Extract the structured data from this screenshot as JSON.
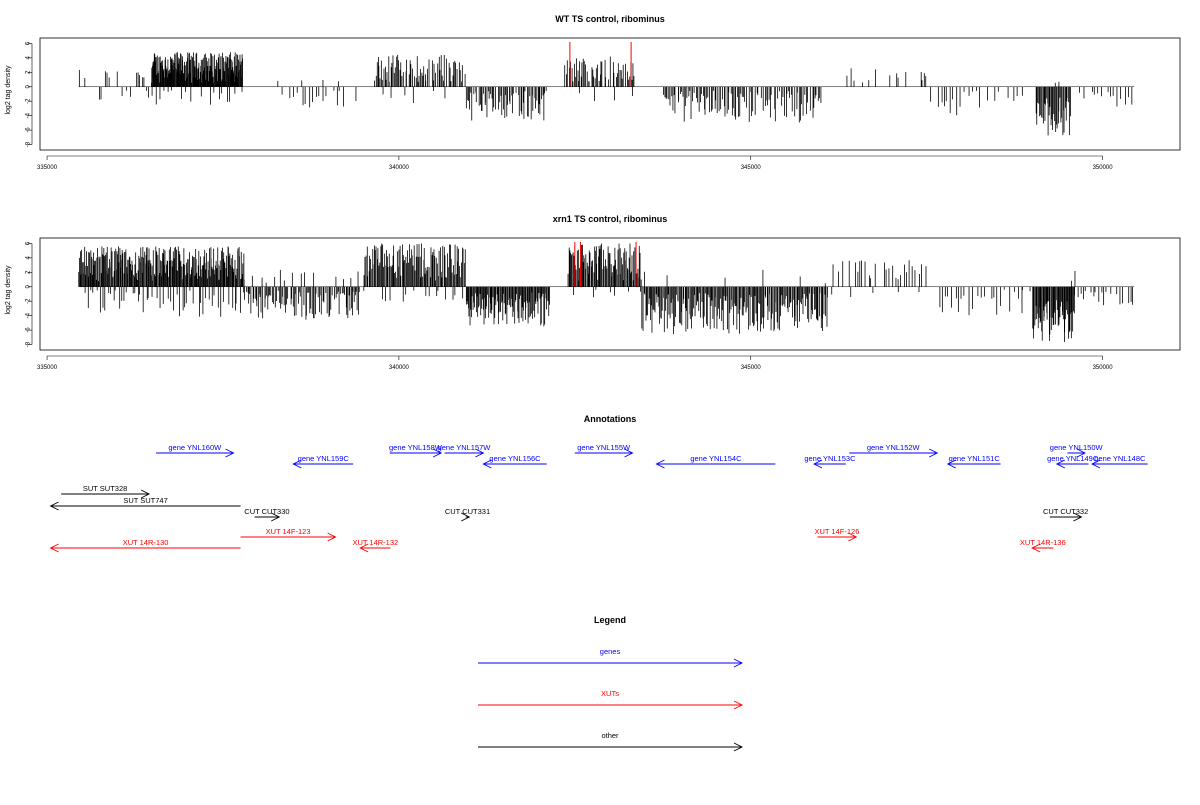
{
  "colors": {
    "gene": "#0000ff",
    "xut": "#ff0000",
    "other": "#000000",
    "marker": "#ff0000",
    "bar": "#000000",
    "baseline": "#000000"
  },
  "chart_data": [
    {
      "type": "bar",
      "title": "WT TS control, ribominus",
      "ylabel": "log2 tag density",
      "xlabel": "",
      "xlim": [
        334900,
        351100
      ],
      "ylim": [
        -8.2,
        6.2
      ],
      "xticks": [
        335000,
        340000,
        345000,
        350000
      ],
      "yticks": [
        -8,
        -6,
        -4,
        -2,
        0,
        2,
        4,
        6
      ],
      "markers_x": [
        342430,
        343300
      ],
      "regions": [
        {
          "start": 335450,
          "end": 335550,
          "n": 3,
          "min": 0.6,
          "max": 3.1,
          "density": 0.7
        },
        {
          "start": 335550,
          "end": 335800,
          "n": 6,
          "min": -2.2,
          "max": -0.6,
          "density": 0.6
        },
        {
          "start": 335800,
          "end": 336020,
          "n": 6,
          "min": 0.4,
          "max": 2.4,
          "density": 0.7
        },
        {
          "start": 336060,
          "end": 336200,
          "n": 3,
          "min": -1.8,
          "max": -0.5,
          "density": 0.6
        },
        {
          "start": 336250,
          "end": 336400,
          "n": 5,
          "min": 0.5,
          "max": 2.2,
          "density": 0.7
        },
        {
          "start": 336400,
          "end": 336480,
          "n": 2,
          "min": -2.0,
          "max": -0.5,
          "density": 0.6
        },
        {
          "start": 336480,
          "end": 337780,
          "n": 190,
          "min": 0.5,
          "max": 4.8,
          "density": 0.9
        },
        {
          "start": 336480,
          "end": 337780,
          "n": 25,
          "min": -2.8,
          "max": -0.4,
          "density": 0.6
        },
        {
          "start": 338200,
          "end": 339300,
          "n": 22,
          "min": -3.0,
          "max": -0.4,
          "density": 0.6
        },
        {
          "start": 338200,
          "end": 339300,
          "n": 4,
          "min": 0.3,
          "max": 1.0,
          "density": 0.6
        },
        {
          "start": 339350,
          "end": 339500,
          "n": 2,
          "min": -3.3,
          "max": -1.0,
          "density": 0.6
        },
        {
          "start": 339650,
          "end": 340950,
          "n": 80,
          "min": 0.5,
          "max": 4.5,
          "density": 0.8
        },
        {
          "start": 339650,
          "end": 340950,
          "n": 8,
          "min": -2.5,
          "max": -0.5,
          "density": 0.6
        },
        {
          "start": 340950,
          "end": 342100,
          "n": 70,
          "min": -4.7,
          "max": -0.5,
          "density": 0.8
        },
        {
          "start": 342350,
          "end": 343350,
          "n": 60,
          "min": 0.5,
          "max": 4.2,
          "density": 0.8
        },
        {
          "start": 342350,
          "end": 343350,
          "n": 8,
          "min": -2.0,
          "max": -0.5,
          "density": 0.6
        },
        {
          "start": 343750,
          "end": 346000,
          "n": 120,
          "min": -5.0,
          "max": -0.5,
          "density": 0.8
        },
        {
          "start": 346300,
          "end": 347400,
          "n": 14,
          "min": 0.4,
          "max": 3.0,
          "density": 0.7
        },
        {
          "start": 347400,
          "end": 347500,
          "n": 4,
          "min": 0.8,
          "max": 2.4,
          "density": 0.9
        },
        {
          "start": 347550,
          "end": 348900,
          "n": 30,
          "min": -4.1,
          "max": -0.5,
          "density": 0.7
        },
        {
          "start": 349050,
          "end": 349550,
          "n": 40,
          "min": -7.0,
          "max": -1.5,
          "density": 0.9
        },
        {
          "start": 349300,
          "end": 349400,
          "n": 2,
          "min": 0.4,
          "max": 1.0,
          "density": 0.6
        },
        {
          "start": 349550,
          "end": 350450,
          "n": 20,
          "min": -2.8,
          "max": -0.5,
          "density": 0.6
        }
      ]
    },
    {
      "type": "bar",
      "title": "xrn1 TS control, ribominus",
      "ylabel": "log2 tag density",
      "xlabel": "",
      "xlim": [
        334900,
        351100
      ],
      "ylim": [
        -8.2,
        6.2
      ],
      "xticks": [
        335000,
        340000,
        345000,
        350000
      ],
      "yticks": [
        -8,
        -6,
        -4,
        -2,
        0,
        2,
        4,
        6
      ],
      "markers_x": [
        342500,
        342580,
        343370
      ],
      "regions": [
        {
          "start": 335450,
          "end": 337800,
          "n": 240,
          "min": 0.8,
          "max": 5.6,
          "density": 0.9
        },
        {
          "start": 335450,
          "end": 337800,
          "n": 60,
          "min": -4.2,
          "max": -0.4,
          "density": 0.7
        },
        {
          "start": 337800,
          "end": 339450,
          "n": 110,
          "min": -4.8,
          "max": -0.5,
          "density": 0.8
        },
        {
          "start": 337800,
          "end": 339450,
          "n": 18,
          "min": 0.4,
          "max": 2.4,
          "density": 0.6
        },
        {
          "start": 339500,
          "end": 340950,
          "n": 110,
          "min": 0.8,
          "max": 6.0,
          "density": 0.9
        },
        {
          "start": 339500,
          "end": 340950,
          "n": 25,
          "min": -2.6,
          "max": -0.4,
          "density": 0.6
        },
        {
          "start": 340950,
          "end": 342150,
          "n": 110,
          "min": -5.6,
          "max": -0.8,
          "density": 0.9
        },
        {
          "start": 342400,
          "end": 343450,
          "n": 90,
          "min": 0.8,
          "max": 6.0,
          "density": 0.9
        },
        {
          "start": 342400,
          "end": 343450,
          "n": 8,
          "min": -1.6,
          "max": -0.4,
          "density": 0.6
        },
        {
          "start": 343450,
          "end": 346100,
          "n": 200,
          "min": -6.6,
          "max": -0.8,
          "density": 0.9
        },
        {
          "start": 343450,
          "end": 346100,
          "n": 10,
          "min": 0.3,
          "max": 2.4,
          "density": 0.6
        },
        {
          "start": 346150,
          "end": 347500,
          "n": 35,
          "min": 0.4,
          "max": 3.8,
          "density": 0.7
        },
        {
          "start": 346150,
          "end": 347500,
          "n": 6,
          "min": -1.5,
          "max": -0.3,
          "density": 0.6
        },
        {
          "start": 347600,
          "end": 349000,
          "n": 30,
          "min": -4.2,
          "max": -0.4,
          "density": 0.7
        },
        {
          "start": 349000,
          "end": 349600,
          "n": 60,
          "min": -8.0,
          "max": -1.5,
          "density": 0.95
        },
        {
          "start": 349550,
          "end": 349650,
          "n": 2,
          "min": 0.5,
          "max": 2.3,
          "density": 0.9
        },
        {
          "start": 349600,
          "end": 350450,
          "n": 30,
          "min": -2.6,
          "max": -0.4,
          "density": 0.6
        }
      ]
    }
  ],
  "annotations": {
    "title": "Annotations",
    "xlim": [
      334900,
      351100
    ],
    "items": [
      {
        "label": "gene YNL160W",
        "kind": "gene",
        "from": 336550,
        "to": 337650,
        "row": 0
      },
      {
        "label": "gene YNL159C",
        "kind": "gene",
        "from": 339350,
        "to": 338500,
        "row": 1
      },
      {
        "label": "gene YNL158W",
        "kind": "gene",
        "from": 339870,
        "to": 340600,
        "row": 0
      },
      {
        "label": "gene YNL157W",
        "kind": "gene",
        "from": 340650,
        "to": 341200,
        "row": 0
      },
      {
        "label": "gene YNL156C",
        "kind": "gene",
        "from": 342100,
        "to": 341200,
        "row": 1
      },
      {
        "label": "gene YNL155W",
        "kind": "gene",
        "from": 342500,
        "to": 343320,
        "row": 0
      },
      {
        "label": "gene YNL154C",
        "kind": "gene",
        "from": 345350,
        "to": 343660,
        "row": 1
      },
      {
        "label": "gene YNL153C",
        "kind": "gene",
        "from": 346350,
        "to": 345900,
        "row": 1
      },
      {
        "label": "gene YNL152W",
        "kind": "gene",
        "from": 346400,
        "to": 347650,
        "row": 0
      },
      {
        "label": "gene YNL151C",
        "kind": "gene",
        "from": 348550,
        "to": 347800,
        "row": 1
      },
      {
        "label": "gene YNL150W",
        "kind": "gene",
        "from": 349500,
        "to": 349750,
        "row": 0
      },
      {
        "label": "gene YNL149C",
        "kind": "gene",
        "from": 349800,
        "to": 349350,
        "row": 1
      },
      {
        "label": "gene YNL148C",
        "kind": "gene",
        "from": 350640,
        "to": 349850,
        "row": 1
      },
      {
        "label": "SUT SUT328",
        "kind": "other",
        "from": 335200,
        "to": 336450,
        "row": 3
      },
      {
        "label": "SUT SUT747",
        "kind": "other",
        "from": 337750,
        "to": 335050,
        "row": 4
      },
      {
        "label": "CUT CUT330",
        "kind": "other",
        "from": 337950,
        "to": 338300,
        "row": 5
      },
      {
        "label": "CUT CUT331",
        "kind": "other",
        "from": 340950,
        "to": 341000,
        "row": 5
      },
      {
        "label": "CUT CUT332",
        "kind": "other",
        "from": 349250,
        "to": 349700,
        "row": 5
      },
      {
        "label": "XUT 14F-123",
        "kind": "xut",
        "from": 337750,
        "to": 339100,
        "row": 6
      },
      {
        "label": "XUT 14R-130",
        "kind": "xut",
        "from": 337750,
        "to": 335050,
        "row": 7
      },
      {
        "label": "XUT 14R-132",
        "kind": "xut",
        "from": 339880,
        "to": 339450,
        "row": 7
      },
      {
        "label": "XUT 14F-126",
        "kind": "xut",
        "from": 345950,
        "to": 346500,
        "row": 6
      },
      {
        "label": "XUT 14R-136",
        "kind": "xut",
        "from": 349300,
        "to": 349000,
        "row": 7
      }
    ]
  },
  "legend": {
    "title": "Legend",
    "items": [
      {
        "label": "genes",
        "kind": "gene"
      },
      {
        "label": "XUTs",
        "kind": "xut"
      },
      {
        "label": "other",
        "kind": "other"
      }
    ]
  }
}
